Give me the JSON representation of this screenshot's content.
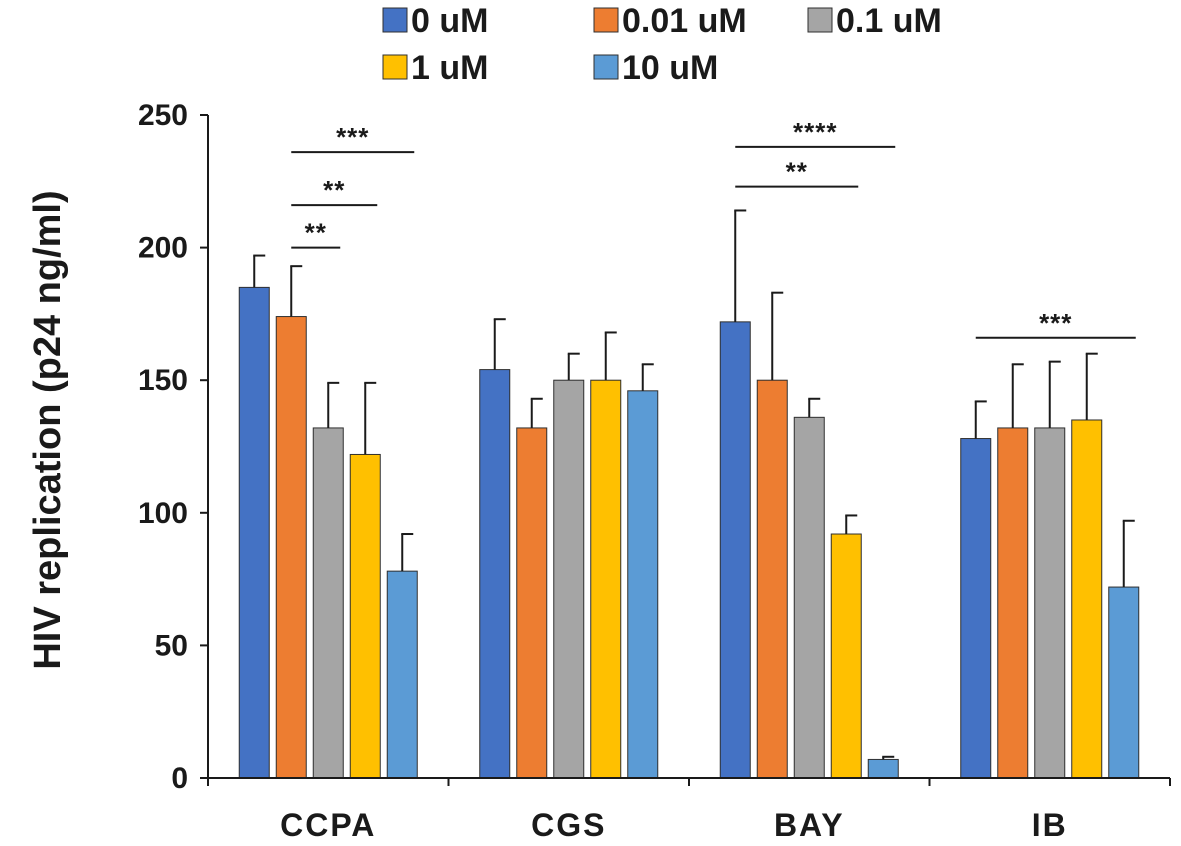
{
  "chart_data": {
    "type": "bar",
    "title": "",
    "xlabel": "",
    "ylabel": "HIV replication (p24 ng/ml)",
    "ylim": [
      0,
      250
    ],
    "yticks": [
      0,
      50,
      100,
      150,
      200,
      250
    ],
    "categories": [
      "CCPA",
      "CGS",
      "BAY",
      "IB"
    ],
    "legend_position": "top",
    "series": [
      {
        "name": "0 uM",
        "color": "#4472C4",
        "values": [
          185,
          154,
          172,
          128
        ],
        "errors": [
          12,
          19,
          42,
          14
        ]
      },
      {
        "name": "0.01 uM",
        "color": "#ED7D31",
        "values": [
          174,
          132,
          150,
          132
        ],
        "errors": [
          19,
          11,
          33,
          24
        ]
      },
      {
        "name": "0.1 uM",
        "color": "#A5A5A5",
        "values": [
          132,
          150,
          136,
          132
        ],
        "errors": [
          17,
          10,
          7,
          25
        ]
      },
      {
        "name": "1 uM",
        "color": "#FFC000",
        "values": [
          122,
          150,
          92,
          135
        ],
        "errors": [
          27,
          18,
          7,
          25
        ]
      },
      {
        "name": "10 uM",
        "color": "#5B9BD5",
        "values": [
          78,
          146,
          7,
          72
        ],
        "errors": [
          14,
          10,
          1,
          25
        ]
      }
    ],
    "significance": [
      {
        "label": "***",
        "category": 0,
        "from_series": 1,
        "to_series": 4,
        "level": 236
      },
      {
        "label": "**",
        "category": 0,
        "from_series": 1,
        "to_series": 3,
        "level": 216
      },
      {
        "label": "**",
        "category": 0,
        "from_series": 1,
        "to_series": 2,
        "level": 200
      },
      {
        "label": "****",
        "category": 2,
        "from_series": 0,
        "to_series": 4,
        "level": 238
      },
      {
        "label": "**",
        "category": 2,
        "from_series": 0,
        "to_series": 3,
        "level": 223
      },
      {
        "label": "***",
        "category": 3,
        "from_series": 0,
        "to_series": 4,
        "level": 166
      }
    ]
  }
}
